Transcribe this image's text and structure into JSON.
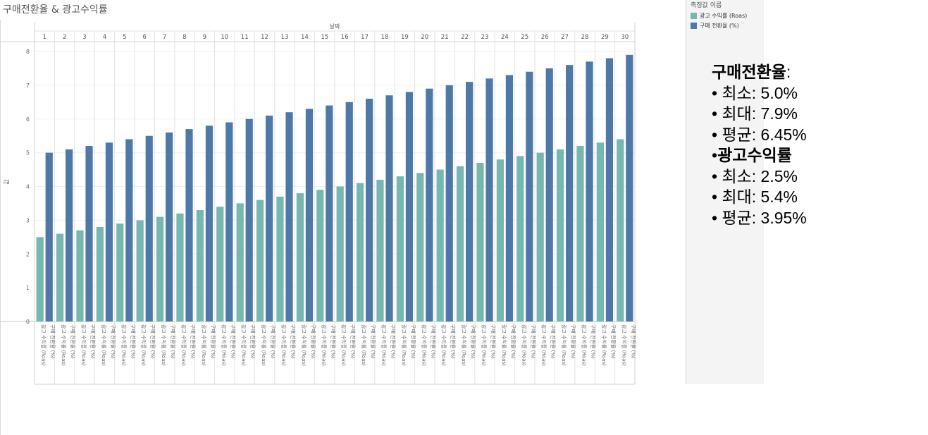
{
  "chart_data": {
    "type": "bar",
    "title": "구매전환율 & 광고수익률",
    "header_label": "날짜",
    "ylabel": "값",
    "ylim": [
      0,
      8
    ],
    "y_ticks": [
      0,
      1,
      2,
      3,
      4,
      5,
      6,
      7,
      8
    ],
    "categories": [
      "1",
      "2",
      "3",
      "4",
      "5",
      "6",
      "7",
      "8",
      "9",
      "10",
      "11",
      "12",
      "13",
      "14",
      "15",
      "16",
      "17",
      "18",
      "19",
      "20",
      "21",
      "22",
      "23",
      "24",
      "25",
      "26",
      "27",
      "28",
      "29",
      "30"
    ],
    "series": [
      {
        "name": "광고 수익률 (Roas)",
        "axis_label": "광고 수익률 (Roas)",
        "color": "#76b7b2",
        "values": [
          2.5,
          2.6,
          2.7,
          2.8,
          2.9,
          3.0,
          3.1,
          3.2,
          3.3,
          3.4,
          3.5,
          3.6,
          3.7,
          3.8,
          3.9,
          4.0,
          4.1,
          4.2,
          4.3,
          4.4,
          4.5,
          4.6,
          4.7,
          4.8,
          4.9,
          5.0,
          5.1,
          5.2,
          5.3,
          5.4
        ]
      },
      {
        "name": "구매 전환율 (%)",
        "axis_label": "구매 전환율 (%)",
        "color": "#4e79a7",
        "values": [
          5.0,
          5.1,
          5.2,
          5.3,
          5.4,
          5.5,
          5.6,
          5.7,
          5.8,
          5.9,
          6.0,
          6.1,
          6.2,
          6.3,
          6.4,
          6.5,
          6.6,
          6.7,
          6.8,
          6.9,
          7.0,
          7.1,
          7.2,
          7.3,
          7.4,
          7.5,
          7.6,
          7.7,
          7.8,
          7.9
        ]
      }
    ],
    "legend": {
      "title": "측정값 이름",
      "items": [
        {
          "label": "광고 수익률 (Roas)",
          "color": "#76b7b2"
        },
        {
          "label": "구매 전환율 (%)",
          "color": "#4e79a7"
        }
      ]
    }
  },
  "stats": {
    "conversion": {
      "title": "구매전환율",
      "colon": ":",
      "min": "• 최소: 5.0%",
      "max": "• 최대: 7.9%",
      "avg": "• 평균: 6.45%"
    },
    "roas": {
      "bullet": "•",
      "title": "광고수익률",
      "min": "• 최소: 2.5%",
      "max": "• 최대: 5.4%",
      "avg": "• 평균: 3.95%"
    }
  }
}
